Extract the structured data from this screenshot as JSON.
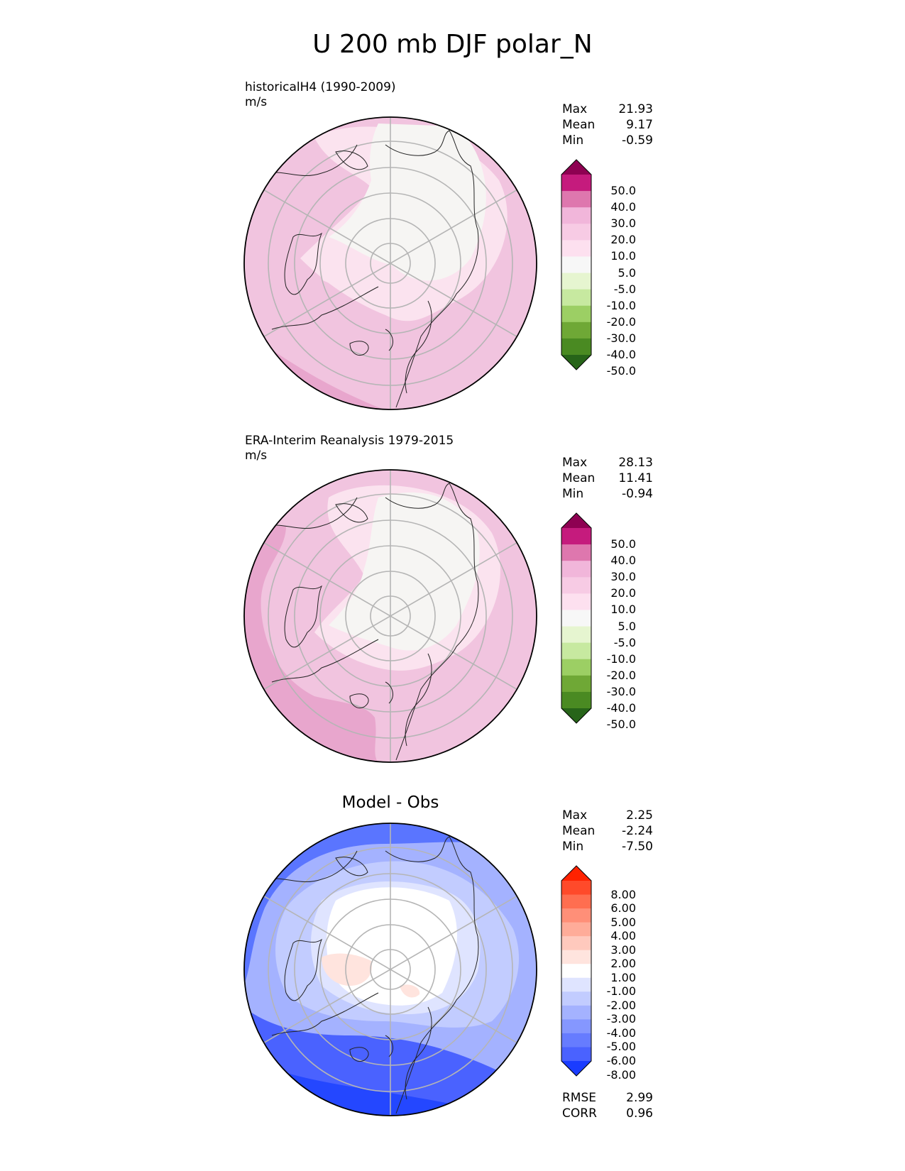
{
  "figure": {
    "title": "U 200 mb DJF polar_N"
  },
  "panels": [
    {
      "id": "model",
      "title": "historicalH4 (1990-2009)",
      "units": "m/s",
      "stats": [
        {
          "label": "Max",
          "value": "21.93"
        },
        {
          "label": "Mean",
          "value": "9.17"
        },
        {
          "label": "Min",
          "value": "-0.59"
        }
      ]
    },
    {
      "id": "obs",
      "title": "ERA-Interim Reanalysis 1979-2015",
      "units": "m/s",
      "stats": [
        {
          "label": "Max",
          "value": "28.13"
        },
        {
          "label": "Mean",
          "value": "11.41"
        },
        {
          "label": "Min",
          "value": "-0.94"
        }
      ]
    },
    {
      "id": "diff",
      "title": "Model - Obs",
      "stats": [
        {
          "label": "Max",
          "value": "2.25"
        },
        {
          "label": "Mean",
          "value": "-2.24"
        },
        {
          "label": "Min",
          "value": "-7.50"
        }
      ],
      "metrics": [
        {
          "label": "RMSE",
          "value": "2.99"
        },
        {
          "label": "CORR",
          "value": "0.96"
        }
      ]
    }
  ],
  "colorbars": {
    "field": {
      "ticks": [
        "50.0",
        "40.0",
        "30.0",
        "20.0",
        "10.0",
        "5.0",
        "-5.0",
        "-10.0",
        "-20.0",
        "-30.0",
        "-40.0",
        "-50.0"
      ],
      "colors": [
        "#8e0152",
        "#c51b7d",
        "#de77ae",
        "#f1b6da",
        "#f7cbe4",
        "#fde0ef",
        "#f7f7f7",
        "#e6f5d0",
        "#c7e9a0",
        "#9ccf64",
        "#6fa836",
        "#4a8a22",
        "#276419"
      ]
    },
    "diff": {
      "ticks": [
        "8.00",
        "6.00",
        "5.00",
        "4.00",
        "3.00",
        "2.00",
        "1.00",
        "-1.00",
        "-2.00",
        "-3.00",
        "-4.00",
        "-5.00",
        "-6.00",
        "-8.00"
      ],
      "colors": [
        "#ff2200",
        "#ff4a2a",
        "#ff6e50",
        "#ff8f78",
        "#ffac99",
        "#ffc9bd",
        "#ffe4de",
        "#ffffff",
        "#dfe4ff",
        "#c2ccff",
        "#a4b2ff",
        "#8597ff",
        "#667cff",
        "#4a62ff",
        "#1a3cff"
      ]
    }
  }
}
